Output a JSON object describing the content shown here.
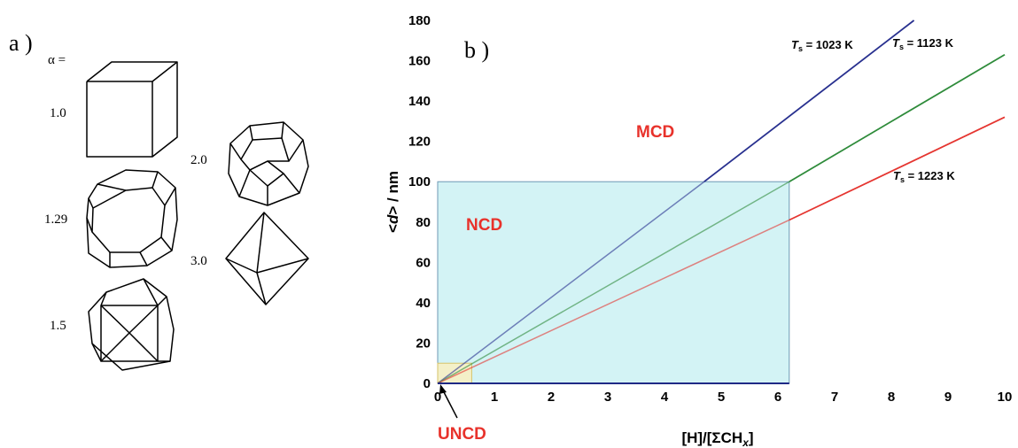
{
  "panel_a": {
    "label": "a )",
    "alpha_label": "α =",
    "shapes": [
      {
        "alpha": "1.0"
      },
      {
        "alpha": "1.29"
      },
      {
        "alpha": "1.5"
      },
      {
        "alpha": "2.0"
      },
      {
        "alpha": "3.0"
      }
    ]
  },
  "panel_b": {
    "label": "b )",
    "regions": {
      "mcd": "MCD",
      "ncd": "NCD",
      "uncd": "UNCD"
    }
  },
  "chart_data": {
    "type": "line",
    "title": "",
    "xlabel": "[H]/[ΣCH_x]",
    "ylabel": "<d> / nm",
    "xlim": [
      0,
      10
    ],
    "ylim": [
      0,
      180
    ],
    "x_ticks": [
      0,
      1,
      2,
      3,
      4,
      5,
      6,
      7,
      8,
      9,
      10
    ],
    "y_ticks": [
      0,
      20,
      40,
      60,
      80,
      100,
      120,
      140,
      160,
      180
    ],
    "grid": false,
    "series": [
      {
        "name": "T_s = 1023 K",
        "color": "#28308f",
        "x": [
          0,
          4.7,
          8.4
        ],
        "y": [
          0,
          100,
          180
        ]
      },
      {
        "name": "T_s = 1123 K",
        "color": "#2e8b3a",
        "x": [
          0,
          6.2,
          10
        ],
        "y": [
          0,
          100,
          163
        ]
      },
      {
        "name": "T_s = 1223 K",
        "color": "#e53530",
        "x": [
          0,
          6.2,
          10
        ],
        "y": [
          0,
          81,
          132
        ]
      }
    ],
    "shaded_regions": [
      {
        "name": "NCD",
        "x": [
          0,
          6.2
        ],
        "y": [
          0,
          100
        ],
        "color": "#d3f3f5"
      },
      {
        "name": "UNCD",
        "x": [
          0,
          0.6
        ],
        "y": [
          0,
          10
        ],
        "color": "#f4f0c8"
      }
    ]
  }
}
